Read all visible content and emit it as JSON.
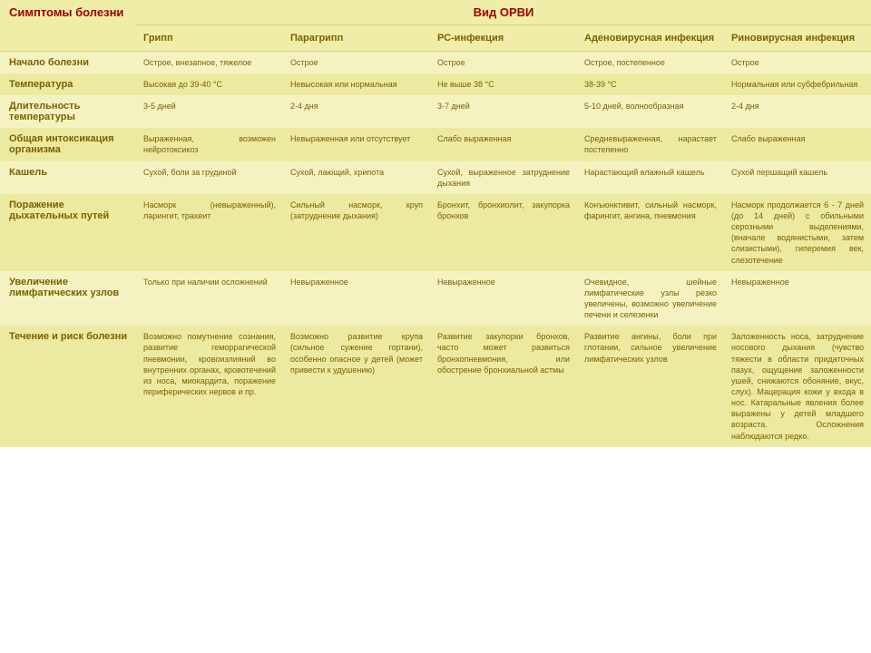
{
  "header": {
    "symptoms_title": "Симптомы болезни",
    "vid_title": "Вид ОРВИ",
    "columns": [
      "Грипп",
      "Парагрипп",
      "РС-инфекция",
      "Аденовирусная инфекция",
      "Риновирусная инфекция"
    ]
  },
  "rows": [
    {
      "symptom": "Начало болезни",
      "cells": [
        "Острое, внезапное, тяжелое",
        "Острое",
        "Острое",
        "Острое, постепенное",
        "Острое"
      ]
    },
    {
      "symptom": "Температура",
      "cells": [
        "Высокая до 39-40 °C",
        "Невысокая или нормальная",
        "Не выше 38 °C",
        "38-39 °C",
        "Нормальная или субфебрильная"
      ]
    },
    {
      "symptom": "Длительность температуры",
      "cells": [
        "3-5 дней",
        "2-4 дня",
        "3-7 дней",
        "5-10 дней, волнообразная",
        "2-4 дня"
      ]
    },
    {
      "symptom": "Общая интоксикация организма",
      "cells": [
        "Выраженная, возможен нейротоксикоз",
        "Невыраженная или отсутствует",
        "Слабо выраженная",
        "Средневыраженная, нарастает постепенно",
        "Слабо выраженная"
      ]
    },
    {
      "symptom": "Кашель",
      "cells": [
        "Сухой, боли за грудиной",
        "Сухой, лающий, хрипота",
        "Сухой, выраженное затруднение дыхания",
        "Нарастающий влажный кашель",
        "Сухой першащий кашель"
      ]
    },
    {
      "symptom": "Поражение дыхательных путей",
      "cells": [
        "Насморк (невыраженный), ларингит, трахеит",
        "Сильный насморк, круп (затруднение дыхания)",
        "Бронхит, бронхиолит, закупорка бронхов",
        "Конъюнктивит, сильный насморк, фарингит, ангина, пневмония",
        "Насморк продолжается 6 - 7 дней (до 14 дней) с обильными серозными выделениями, (вначале водянистыми, затем слизистыми), гиперемия век, слезотечение"
      ]
    },
    {
      "symptom": "Увеличение лимфатических узлов",
      "cells": [
        "Только при наличии осложнений",
        "Невыраженное",
        "Невыраженное",
        "Очевидное, шейные лимфатические узлы резко увеличены, возможно увеличение печени и селезенки",
        "Невыраженное"
      ]
    },
    {
      "symptom": "Течение и риск болезни",
      "cells": [
        "Возможно помутнение сознания, развитие геморрагической пневмонии, кровоизлияний во внутренних органах, кровотечений из носа, миокардита, поражение периферических нервов и пр.",
        "Возможно развитие крупа (сильное сужение гортани), особенно опасное у детей (может привести к удушению)",
        "Развитие закупорки бронхов, часто может развиться бронхопневмония, или обострение бронхиальной астмы",
        "Развитие ангины, боли при глотании, сильное увеличение лимфатических узлов",
        "Заложенность носа, затруднение носового дыхания (чувство тяжести в области придаточных пазух, ощущение заложенности ушей, снижаются обоняние, вкус, слух). Мацерация кожи у входа в нос. Катаральные явления более выражены у детей младшего возраста. Осложнения наблюдаются редко."
      ]
    }
  ],
  "style": {
    "title_color": "#a00000",
    "text_color": "#7a6000",
    "row_a_bg": "#f5f2c2",
    "row_b_bg": "#eceaa0",
    "header_bg": "#f0eda8",
    "title_fontsize": 13,
    "col_header_fontsize": 11,
    "cell_fontsize": 9
  }
}
